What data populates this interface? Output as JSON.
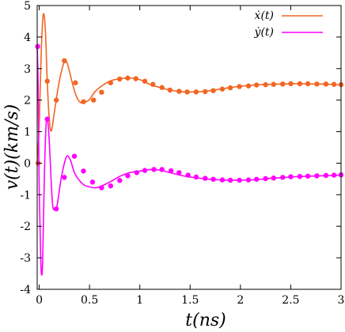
{
  "chart_data": {
    "type": "line",
    "xlabel": "t(ns)",
    "ylabel": "v(t)(km/s)",
    "xlim": [
      -0.02,
      3.0
    ],
    "ylim": [
      -4,
      5
    ],
    "xticks": [
      0,
      0.5,
      1,
      1.5,
      2,
      2.5,
      3
    ],
    "xtick_labels": [
      "0",
      "0.5",
      "1",
      "1.5",
      "2",
      "2.5",
      "3"
    ],
    "yticks": [
      -4,
      -3,
      -2,
      -1,
      0,
      1,
      2,
      3,
      4,
      5
    ],
    "ytick_labels": [
      "-4",
      "-3",
      "-2",
      "-1",
      "0",
      "1",
      "2",
      "3",
      "4",
      "5"
    ],
    "grid": false,
    "legend_position": "top-right",
    "series": [
      {
        "name": "ẋ(t)",
        "color": "#f26522",
        "curve": [
          [
            -0.02,
            0.0
          ],
          [
            0.0,
            1.2
          ],
          [
            0.02,
            3.5
          ],
          [
            0.04,
            4.7
          ],
          [
            0.06,
            4.3
          ],
          [
            0.08,
            2.6
          ],
          [
            0.1,
            1.4
          ],
          [
            0.12,
            1.02
          ],
          [
            0.15,
            1.6
          ],
          [
            0.2,
            2.6
          ],
          [
            0.25,
            3.22
          ],
          [
            0.28,
            3.15
          ],
          [
            0.35,
            2.3
          ],
          [
            0.4,
            1.95
          ],
          [
            0.45,
            1.93
          ],
          [
            0.5,
            2.02
          ],
          [
            0.55,
            2.25
          ],
          [
            0.6,
            2.4
          ],
          [
            0.7,
            2.6
          ],
          [
            0.8,
            2.68
          ],
          [
            0.9,
            2.7
          ],
          [
            1.0,
            2.65
          ],
          [
            1.1,
            2.5
          ],
          [
            1.2,
            2.4
          ],
          [
            1.3,
            2.32
          ],
          [
            1.4,
            2.27
          ],
          [
            1.5,
            2.26
          ],
          [
            1.6,
            2.27
          ],
          [
            1.7,
            2.3
          ],
          [
            1.8,
            2.35
          ],
          [
            1.9,
            2.4
          ],
          [
            2.0,
            2.44
          ],
          [
            2.1,
            2.47
          ],
          [
            2.2,
            2.49
          ],
          [
            2.3,
            2.5
          ],
          [
            2.4,
            2.51
          ],
          [
            2.5,
            2.52
          ],
          [
            2.6,
            2.52
          ],
          [
            2.7,
            2.51
          ],
          [
            2.8,
            2.51
          ],
          [
            2.9,
            2.5
          ],
          [
            3.0,
            2.49
          ]
        ],
        "markers": [
          [
            -0.01,
            0.0
          ],
          [
            0.08,
            2.6
          ],
          [
            0.17,
            2.0
          ],
          [
            0.25,
            3.25
          ],
          [
            0.36,
            2.55
          ],
          [
            0.44,
            1.95
          ],
          [
            0.54,
            2.0
          ],
          [
            0.62,
            2.25
          ],
          [
            0.71,
            2.55
          ],
          [
            0.8,
            2.67
          ],
          [
            0.88,
            2.7
          ],
          [
            0.96,
            2.68
          ],
          [
            1.05,
            2.6
          ],
          [
            1.13,
            2.5
          ],
          [
            1.22,
            2.4
          ],
          [
            1.3,
            2.32
          ],
          [
            1.39,
            2.28
          ],
          [
            1.47,
            2.26
          ],
          [
            1.56,
            2.26
          ],
          [
            1.65,
            2.27
          ],
          [
            1.73,
            2.3
          ],
          [
            1.82,
            2.35
          ],
          [
            1.9,
            2.39
          ],
          [
            1.99,
            2.43
          ],
          [
            2.08,
            2.45
          ],
          [
            2.16,
            2.48
          ],
          [
            2.25,
            2.49
          ],
          [
            2.33,
            2.5
          ],
          [
            2.42,
            2.51
          ],
          [
            2.5,
            2.52
          ],
          [
            2.59,
            2.52
          ],
          [
            2.67,
            2.52
          ],
          [
            2.76,
            2.51
          ],
          [
            2.85,
            2.51
          ],
          [
            2.93,
            2.5
          ],
          [
            3.0,
            2.49
          ]
        ]
      },
      {
        "name": "ẏ(t)",
        "color": "#ff00ff",
        "curve": [
          [
            -0.02,
            3.7
          ],
          [
            -0.01,
            2.4
          ],
          [
            0.0,
            -0.8
          ],
          [
            0.015,
            -3.0
          ],
          [
            0.025,
            -3.55
          ],
          [
            0.035,
            -3.0
          ],
          [
            0.05,
            -0.6
          ],
          [
            0.065,
            1.0
          ],
          [
            0.08,
            1.45
          ],
          [
            0.1,
            0.7
          ],
          [
            0.13,
            -1.2
          ],
          [
            0.155,
            -1.48
          ],
          [
            0.18,
            -1.3
          ],
          [
            0.22,
            -0.45
          ],
          [
            0.27,
            0.2
          ],
          [
            0.31,
            0.1
          ],
          [
            0.35,
            -0.3
          ],
          [
            0.4,
            -0.55
          ],
          [
            0.45,
            -0.7
          ],
          [
            0.5,
            -0.75
          ],
          [
            0.55,
            -0.78
          ],
          [
            0.6,
            -0.75
          ],
          [
            0.7,
            -0.6
          ],
          [
            0.8,
            -0.42
          ],
          [
            0.9,
            -0.3
          ],
          [
            1.0,
            -0.25
          ],
          [
            1.1,
            -0.2
          ],
          [
            1.2,
            -0.22
          ],
          [
            1.3,
            -0.3
          ],
          [
            1.4,
            -0.38
          ],
          [
            1.5,
            -0.44
          ],
          [
            1.6,
            -0.48
          ],
          [
            1.7,
            -0.51
          ],
          [
            1.8,
            -0.53
          ],
          [
            1.9,
            -0.54
          ],
          [
            2.0,
            -0.54
          ],
          [
            2.1,
            -0.53
          ],
          [
            2.2,
            -0.51
          ],
          [
            2.3,
            -0.48
          ],
          [
            2.4,
            -0.46
          ],
          [
            2.5,
            -0.44
          ],
          [
            2.6,
            -0.42
          ],
          [
            2.7,
            -0.41
          ],
          [
            2.8,
            -0.4
          ],
          [
            2.9,
            -0.39
          ],
          [
            3.0,
            -0.38
          ]
        ],
        "markers": [
          [
            -0.015,
            3.7
          ],
          [
            0.08,
            1.4
          ],
          [
            0.17,
            -1.45
          ],
          [
            0.25,
            -0.45
          ],
          [
            0.35,
            0.22
          ],
          [
            0.44,
            -0.25
          ],
          [
            0.53,
            -0.6
          ],
          [
            0.62,
            -0.78
          ],
          [
            0.71,
            -0.72
          ],
          [
            0.8,
            -0.55
          ],
          [
            0.88,
            -0.4
          ],
          [
            0.97,
            -0.3
          ],
          [
            1.05,
            -0.23
          ],
          [
            1.14,
            -0.2
          ],
          [
            1.22,
            -0.2
          ],
          [
            1.31,
            -0.24
          ],
          [
            1.39,
            -0.3
          ],
          [
            1.48,
            -0.38
          ],
          [
            1.56,
            -0.44
          ],
          [
            1.65,
            -0.48
          ],
          [
            1.73,
            -0.51
          ],
          [
            1.82,
            -0.53
          ],
          [
            1.9,
            -0.54
          ],
          [
            1.99,
            -0.54
          ],
          [
            2.08,
            -0.53
          ],
          [
            2.16,
            -0.51
          ],
          [
            2.25,
            -0.49
          ],
          [
            2.33,
            -0.47
          ],
          [
            2.42,
            -0.45
          ],
          [
            2.5,
            -0.43
          ],
          [
            2.59,
            -0.42
          ],
          [
            2.67,
            -0.41
          ],
          [
            2.76,
            -0.4
          ],
          [
            2.85,
            -0.39
          ],
          [
            2.93,
            -0.38
          ],
          [
            3.0,
            -0.37
          ]
        ]
      }
    ]
  }
}
